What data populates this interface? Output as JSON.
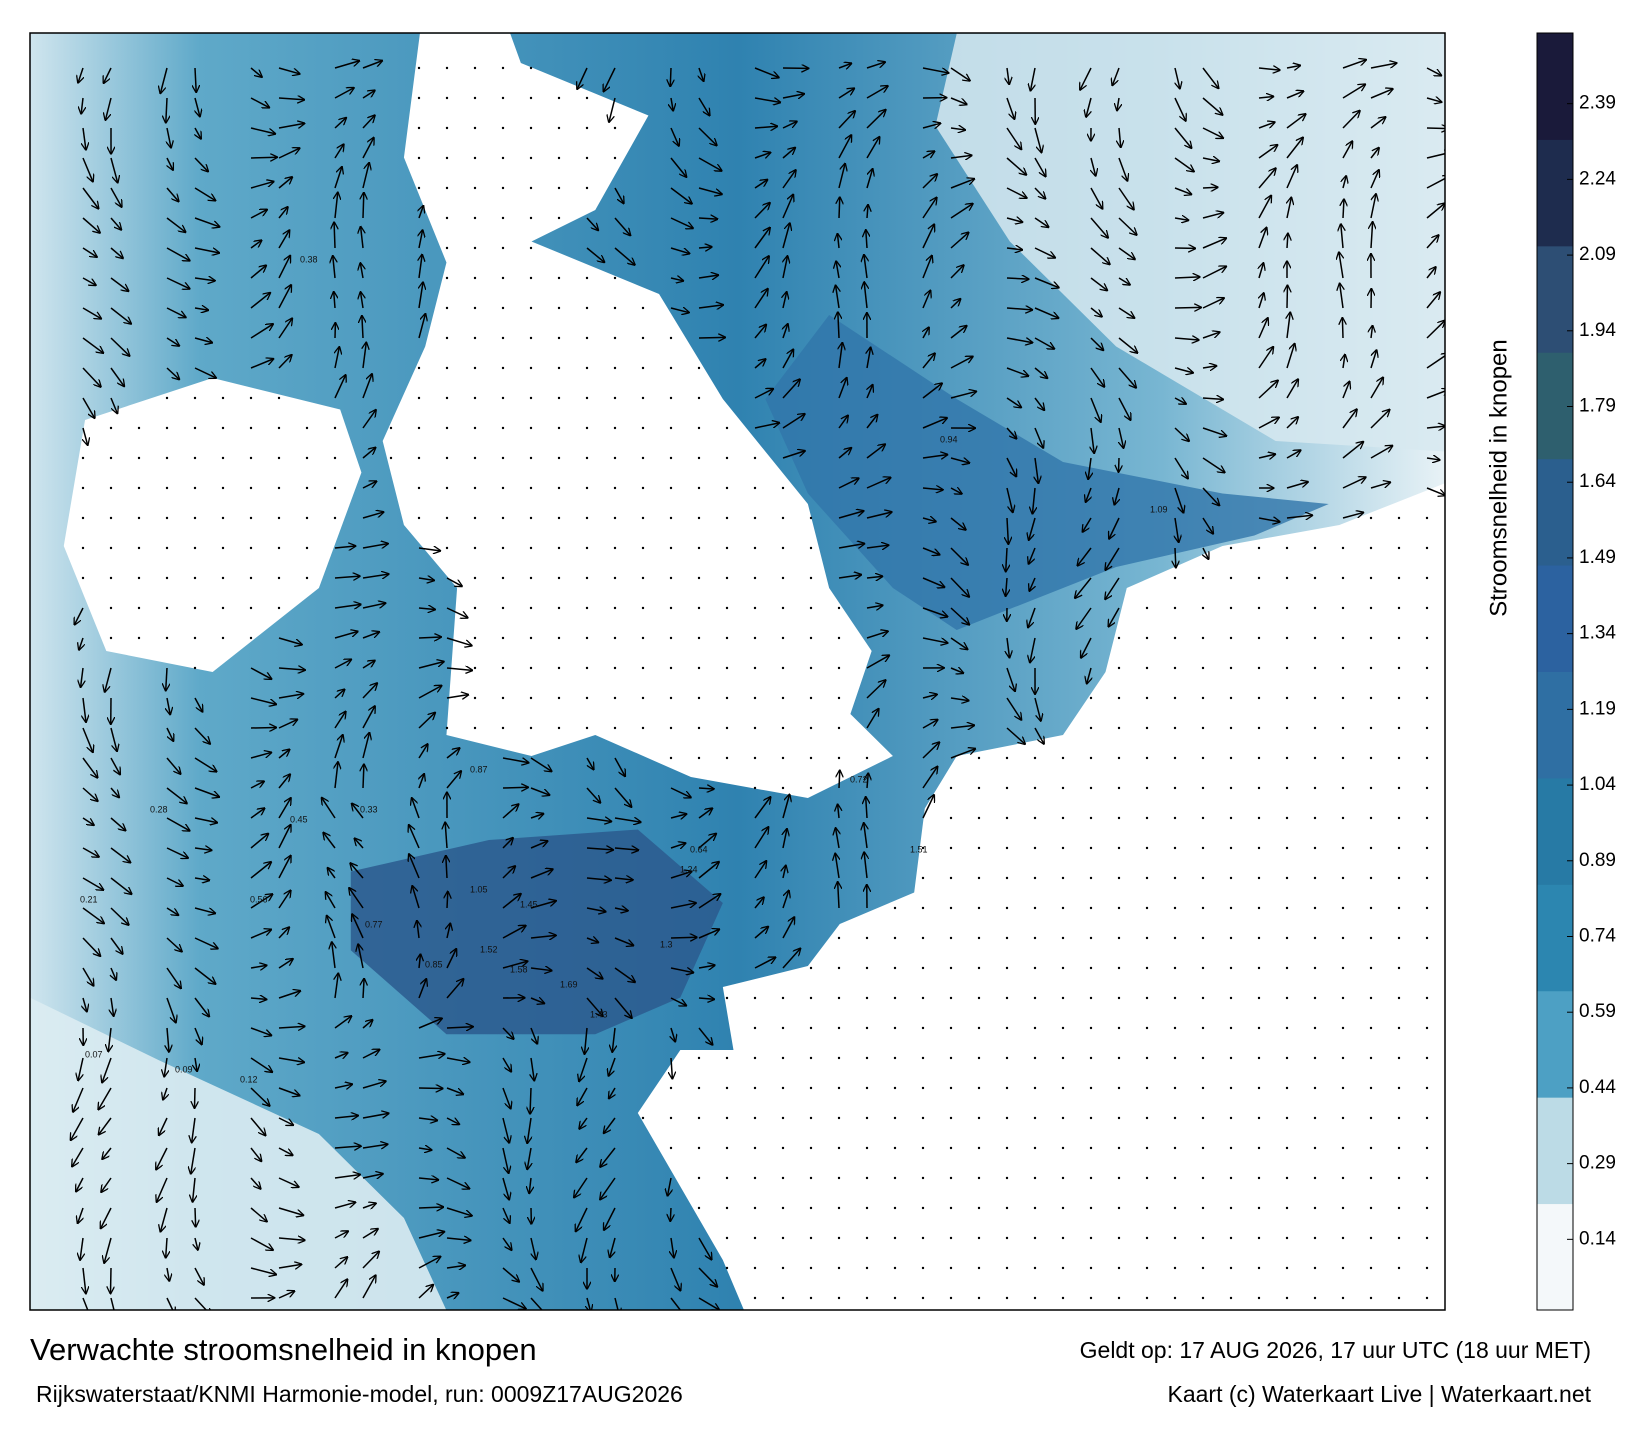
{
  "map": {
    "title": "Verwachte stroomsnelheid in knopen",
    "subtitle": "Rijkswaterstaat/KNMI Harmonie-model, run: 0009Z17AUG2026",
    "valid_time": "Geldt op: 17 AUG 2026, 17 uur UTC (18 uur MET)",
    "credit": "Kaart (c) Waterkaart Live | Waterkaart.net",
    "colorbar": {
      "label": "Stroomsnelheid in knopen",
      "lim": [
        0,
        2.53
      ],
      "ticks": [
        0.14,
        0.29,
        0.44,
        0.59,
        0.74,
        0.89,
        1.04,
        1.19,
        1.34,
        1.49,
        1.64,
        1.79,
        1.94,
        2.09,
        2.24,
        2.39
      ],
      "colors": [
        "#f4f8fa",
        "#bcdbe6",
        "#4da0c4",
        "#2c86b0",
        "#277aa5",
        "#2f6fa3",
        "#2c62a0",
        "#2b5f8e",
        "#2e5f6e",
        "#2d4e74",
        "#1e2c4e",
        "#1a1a3a"
      ]
    },
    "speed_labels": [
      "1.69",
      "1.43",
      "1.58",
      "1.52",
      "1.45",
      "1.3",
      "1.24",
      "1.05",
      "0.87",
      "0.85",
      "0.77",
      "0.64",
      "0.56",
      "0.45",
      "0.33",
      "0.28",
      "0.21",
      "0.12",
      "0.09",
      "0.07",
      "1.51",
      "1.09",
      "0.94",
      "0.72",
      "0.38"
    ]
  }
}
